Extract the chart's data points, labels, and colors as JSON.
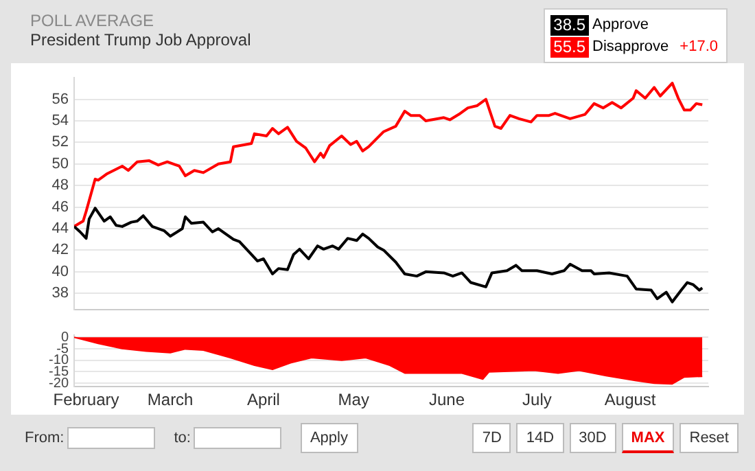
{
  "chart_data": [
    {
      "type": "line",
      "subtitle": "POLL AVERAGE",
      "title": "President Trump Job Approval",
      "legend": "top right",
      "marker": "none",
      "line_style": "solid",
      "grid": "y",
      "tick_labels": "y",
      "xlim": [
        "--01-28",
        "--08-27"
      ],
      "ylim": [
        36.5,
        58
      ],
      "yticks": [
        38,
        40,
        42,
        44,
        46,
        48,
        50,
        52,
        54,
        56
      ],
      "annotations": [
        "38.5",
        "55.5",
        "+17.0"
      ],
      "series": [
        {
          "name": "Approve",
          "color": "#000000",
          "x": [
            "--01-28",
            "--01-30",
            "--02-01",
            "--02-02",
            "--02-04",
            "--02-07",
            "--02-09",
            "--02-11",
            "--02-13",
            "--02-16",
            "--02-18",
            "--02-20",
            "--02-23",
            "--02-27",
            "--03-01",
            "--03-05",
            "--03-06",
            "--03-08",
            "--03-12",
            "--03-15",
            "--03-17",
            "--03-22",
            "--03-24",
            "--03-28",
            "--03-30",
            "--04-01",
            "--04-04",
            "--04-06",
            "--04-09",
            "--04-11",
            "--04-13",
            "--04-16",
            "--04-19",
            "--04-21",
            "--04-24",
            "--04-26",
            "--04-29",
            "--05-02",
            "--05-04",
            "--05-06",
            "--05-09",
            "--05-11",
            "--05-15",
            "--05-18",
            "--05-22",
            "--05-25",
            "--05-31",
            "--06-03",
            "--06-06",
            "--06-09",
            "--06-14",
            "--06-16",
            "--06-21",
            "--06-24",
            "--06-26",
            "--07-01",
            "--07-06",
            "--07-10",
            "--07-12",
            "--07-16",
            "--07-19",
            "--07-20",
            "--07-25",
            "--07-31",
            "--08-03",
            "--08-08",
            "--08-10",
            "--08-13",
            "--08-15",
            "--08-18",
            "--08-20",
            "--08-22",
            "--08-24",
            "--08-25"
          ],
          "values": [
            44.2,
            43.7,
            43.1,
            44.9,
            45.9,
            44.7,
            45.1,
            44.3,
            44.2,
            44.6,
            44.7,
            45.2,
            44.2,
            43.8,
            43.3,
            44.0,
            45.1,
            44.5,
            44.6,
            43.7,
            44.0,
            43.0,
            42.8,
            41.6,
            41.0,
            41.2,
            39.8,
            40.3,
            40.2,
            41.6,
            42.1,
            41.2,
            42.4,
            42.1,
            42.4,
            42.1,
            43.1,
            42.9,
            43.5,
            43.1,
            42.3,
            42.0,
            40.9,
            39.8,
            39.6,
            40.0,
            39.9,
            39.6,
            39.9,
            39.0,
            38.6,
            39.9,
            40.1,
            40.6,
            40.1,
            40.1,
            39.8,
            40.1,
            40.7,
            40.1,
            40.1,
            39.8,
            39.9,
            39.6,
            38.4,
            38.3,
            37.5,
            38.1,
            37.2,
            38.3,
            39.0,
            38.8,
            38.3,
            38.5
          ]
        },
        {
          "name": "Disapprove",
          "color": "#ff0000",
          "x": [
            "--01-28",
            "--01-31",
            "--02-01",
            "--02-04",
            "--02-05",
            "--02-08",
            "--02-13",
            "--02-15",
            "--02-18",
            "--02-22",
            "--02-25",
            "--02-28",
            "--03-04",
            "--03-06",
            "--03-09",
            "--03-12",
            "--03-17",
            "--03-21",
            "--03-22",
            "--03-28",
            "--03-29",
            "--04-02",
            "--04-04",
            "--04-06",
            "--04-09",
            "--04-12",
            "--04-15",
            "--04-18",
            "--04-20",
            "--04-21",
            "--04-23",
            "--04-27",
            "--04-30",
            "--05-02",
            "--05-04",
            "--05-06",
            "--05-11",
            "--05-15",
            "--05-18",
            "--05-20",
            "--05-23",
            "--05-25",
            "--05-31",
            "--06-02",
            "--06-05",
            "--06-08",
            "--06-11",
            "--06-14",
            "--06-17",
            "--06-19",
            "--06-22",
            "--06-25",
            "--06-29",
            "--07-01",
            "--07-05",
            "--07-07",
            "--07-12",
            "--07-17",
            "--07-20",
            "--07-23",
            "--07-26",
            "--07-29",
            "--08-02",
            "--08-03",
            "--08-06",
            "--08-09",
            "--08-11",
            "--08-15",
            "--08-17",
            "--08-19",
            "--08-21",
            "--08-23",
            "--08-25"
          ],
          "values": [
            44.2,
            44.7,
            45.6,
            48.6,
            48.5,
            49.1,
            49.8,
            49.4,
            50.2,
            50.3,
            49.9,
            50.2,
            49.8,
            48.9,
            49.4,
            49.2,
            50.0,
            50.2,
            51.6,
            51.9,
            52.8,
            52.6,
            53.3,
            52.8,
            53.4,
            52.1,
            51.5,
            50.2,
            51.0,
            50.6,
            51.7,
            52.6,
            51.8,
            52.1,
            51.2,
            51.6,
            53.0,
            53.5,
            54.9,
            54.5,
            54.5,
            54.0,
            54.3,
            54.1,
            54.6,
            55.2,
            55.4,
            56.0,
            53.5,
            53.3,
            54.5,
            54.2,
            53.9,
            54.5,
            54.5,
            54.7,
            54.2,
            54.6,
            55.6,
            55.2,
            55.7,
            55.2,
            56.1,
            56.8,
            56.1,
            57.1,
            56.3,
            57.5,
            56.1,
            55.0,
            55.0,
            55.6,
            55.5
          ]
        }
      ]
    },
    {
      "type": "area",
      "marker": "none",
      "grid": "y",
      "xlim": [
        "--01-28",
        "--08-27"
      ],
      "xticks": [
        {
          "value": "--02-01",
          "label": "February"
        },
        {
          "value": "--03-01",
          "label": "March"
        },
        {
          "value": "--04-01",
          "label": "April"
        },
        {
          "value": "--05-01",
          "label": "May"
        },
        {
          "value": "--06-01",
          "label": "June"
        },
        {
          "value": "--07-01",
          "label": "July"
        },
        {
          "value": "--08-01",
          "label": "August"
        }
      ],
      "ylim": [
        -21.5,
        1
      ],
      "yticks": [
        0,
        -5,
        -10,
        -15,
        -20
      ],
      "annotations": [
        "From:",
        "to:",
        "Apply",
        "7D",
        "14D",
        "30D",
        "MAX",
        "Reset"
      ],
      "series": [
        {
          "color": "#ff0000",
          "x": [
            "--01-28",
            "--02-05",
            "--02-13",
            "--02-21",
            "--03-01",
            "--03-06",
            "--03-12",
            "--03-21",
            "--03-29",
            "--04-04",
            "--04-10",
            "--04-17",
            "--04-27",
            "--05-05",
            "--05-13",
            "--05-18",
            "--05-29",
            "--06-06",
            "--06-13",
            "--06-15",
            "--06-30",
            "--07-08",
            "--07-15",
            "--07-24",
            "--08-03",
            "--08-09",
            "--08-15",
            "--08-19",
            "--08-25"
          ],
          "values": [
            0,
            -2.7,
            -4.9,
            -6.0,
            -6.7,
            -5.1,
            -5.6,
            -8.9,
            -12.2,
            -14.0,
            -11.1,
            -8.9,
            -10.0,
            -8.9,
            -12.2,
            -15.6,
            -15.6,
            -15.6,
            -18.2,
            -15.1,
            -14.4,
            -15.6,
            -14.4,
            -16.7,
            -18.9,
            -20.0,
            -20.3,
            -17.3,
            -17.0
          ]
        }
      ]
    }
  ]
}
